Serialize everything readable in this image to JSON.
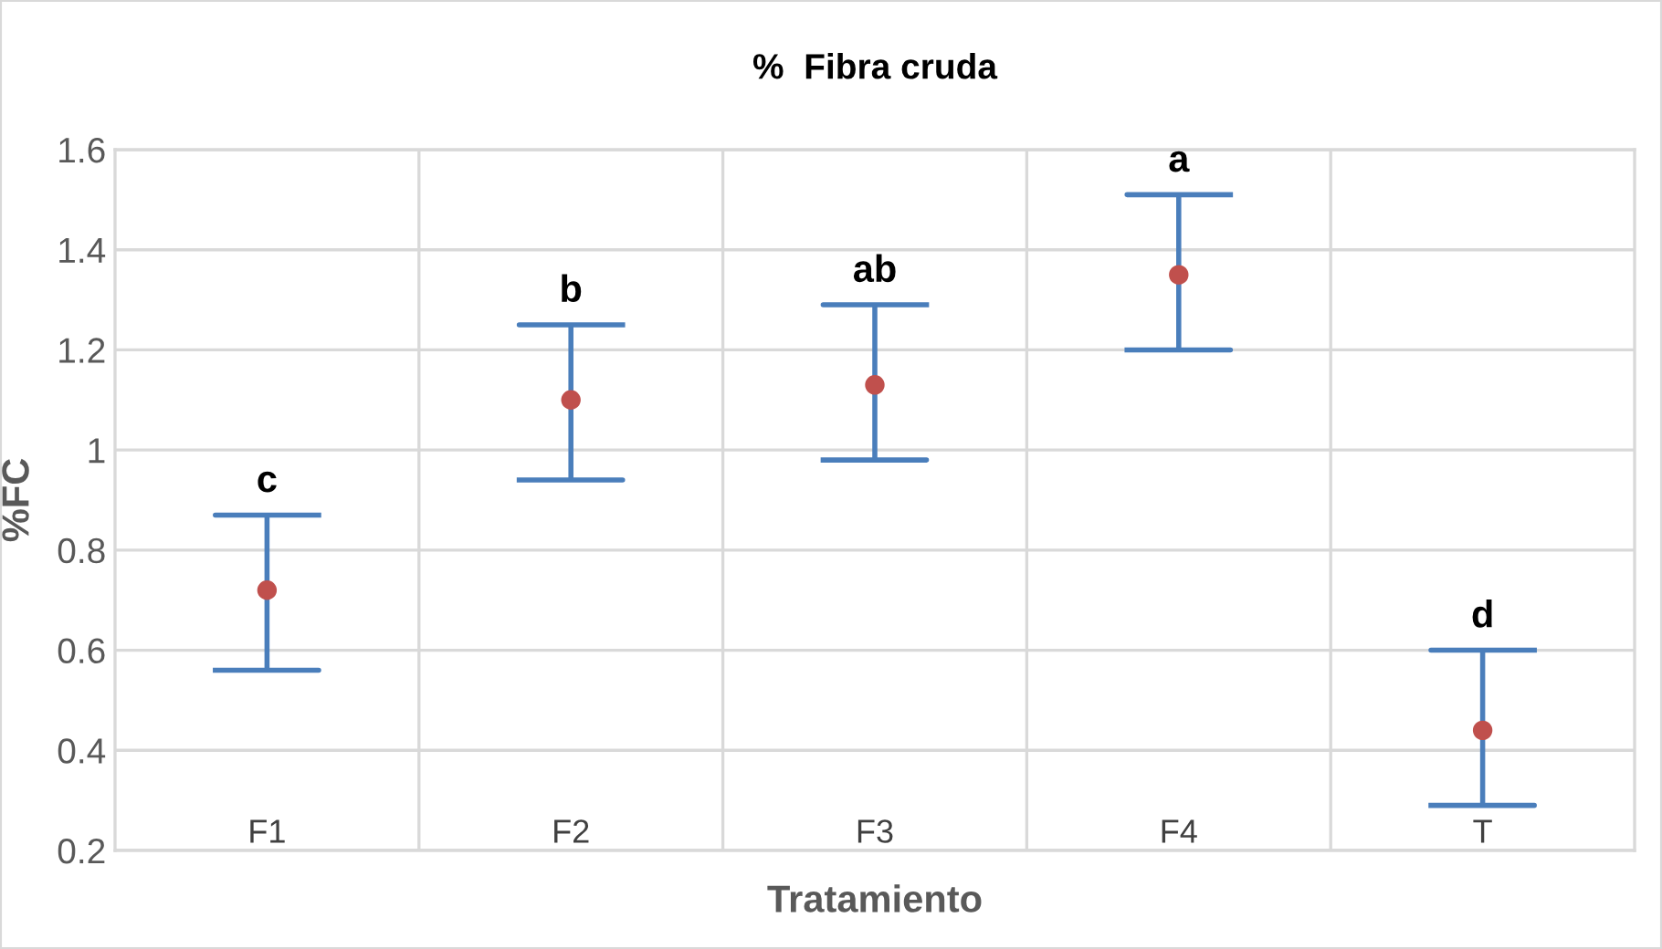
{
  "chart_data": {
    "type": "scatter",
    "title": "%  Fibra cruda",
    "xlabel": "Tratamiento",
    "ylabel": "%FC",
    "categories": [
      "F1",
      "F2",
      "F3",
      "F4",
      "T"
    ],
    "color": "#c0504d",
    "values": [
      0.72,
      1.1,
      1.13,
      1.35,
      0.44
    ],
    "errors": [
      [
        0.56,
        0.87
      ],
      [
        0.94,
        1.25
      ],
      [
        0.98,
        1.29
      ],
      [
        1.2,
        1.51
      ],
      [
        0.29,
        0.6
      ]
    ],
    "ylim": [
      0.2,
      1.6
    ],
    "yticks": [
      {
        "value": 0.2,
        "label": "0.2"
      },
      {
        "value": 0.4,
        "label": "0.4"
      },
      {
        "value": 0.6,
        "label": "0.6"
      },
      {
        "value": 0.8,
        "label": "0.8"
      },
      {
        "value": 1.0,
        "label": "1"
      },
      {
        "value": 1.2,
        "label": "1.2"
      },
      {
        "value": 1.4,
        "label": "1.4"
      },
      {
        "value": 1.6,
        "label": "1.6"
      }
    ],
    "annotations": [
      {
        "text": "c",
        "x": "F1",
        "y": 0.87
      },
      {
        "text": "b",
        "x": "F2",
        "y": 1.25
      },
      {
        "text": "ab",
        "x": "F3",
        "y": 1.29
      },
      {
        "text": "a",
        "x": "F4",
        "y": 1.51
      },
      {
        "text": "d",
        "x": "T",
        "y": 0.6
      }
    ],
    "grid": true,
    "marker": "circle"
  }
}
